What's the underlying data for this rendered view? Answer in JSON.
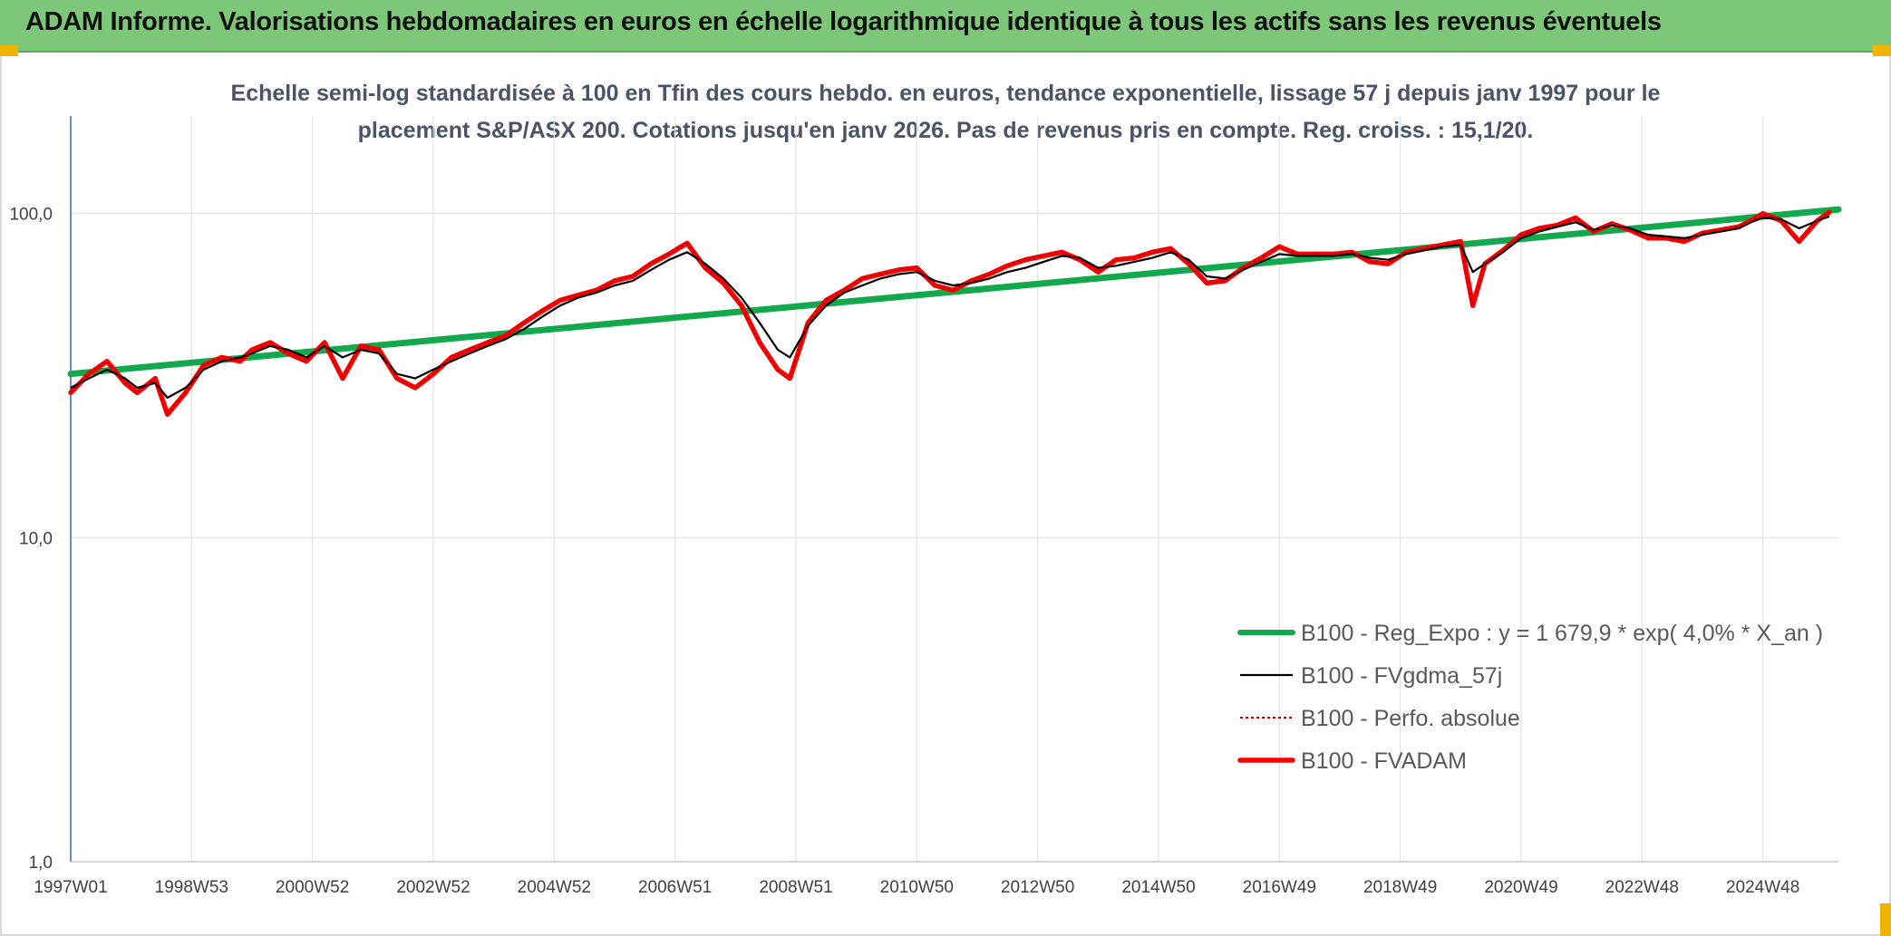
{
  "header": {
    "title": "ADAM Informe. Valorisations hebdomadaires en euros en échelle logarithmique identique à tous les actifs sans les revenus éventuels",
    "color": "#7dc878"
  },
  "chart_data": {
    "type": "line",
    "title": [
      "Echelle semi-log standardisée à 100 en Tfin des cours hebdo. en euros, tendance exponentielle, lissage 57 j depuis janv 1997 pour le",
      "placement S&P/ASX 200. Cotations jusqu'en janv 2026. Pas de revenus pris en compte. Reg. croiss. : 15,1/20."
    ],
    "y_scale": "log",
    "ylim": [
      1,
      200
    ],
    "y_ticks": [
      {
        "value": 100,
        "label": "100,0"
      },
      {
        "value": 10,
        "label": "10,0"
      },
      {
        "value": 1,
        "label": "1,0"
      }
    ],
    "xlim": [
      1997.0,
      2026.25
    ],
    "x_ticks": [
      {
        "value": 1997.0,
        "label": "1997W01"
      },
      {
        "value": 1999.0,
        "label": "1998W53"
      },
      {
        "value": 2001.0,
        "label": "2000W52"
      },
      {
        "value": 2003.0,
        "label": "2002W52"
      },
      {
        "value": 2005.0,
        "label": "2004W52"
      },
      {
        "value": 2007.0,
        "label": "2006W51"
      },
      {
        "value": 2009.0,
        "label": "2008W51"
      },
      {
        "value": 2011.0,
        "label": "2010W50"
      },
      {
        "value": 2013.0,
        "label": "2012W50"
      },
      {
        "value": 2015.0,
        "label": "2014W50"
      },
      {
        "value": 2017.0,
        "label": "2016W49"
      },
      {
        "value": 2019.0,
        "label": "2018W49"
      },
      {
        "value": 2021.0,
        "label": "2020W49"
      },
      {
        "value": 2023.0,
        "label": "2022W48"
      },
      {
        "value": 2025.0,
        "label": "2024W48"
      }
    ],
    "grid": {
      "vertical": true,
      "horizontal": true
    },
    "legend_position": "bottom-right",
    "series": [
      {
        "name": "B100 - Reg_Expo : y = 1 679,9 * exp( 4,0% *  X_an )",
        "color": "#12a84c",
        "style": "trend",
        "x": [
          1997.0,
          2026.25
        ],
        "y": [
          32.0,
          103.0
        ]
      },
      {
        "name": "B100 - FVgdma_57j",
        "color": "#000000",
        "style": "thin",
        "x": [
          1997.0,
          1997.3,
          1997.6,
          1997.9,
          1998.1,
          1998.4,
          1998.6,
          1998.9,
          1999.2,
          1999.5,
          1999.8,
          2000.0,
          2000.3,
          2000.6,
          2000.9,
          2001.2,
          2001.5,
          2001.8,
          2002.1,
          2002.4,
          2002.7,
          2003.0,
          2003.3,
          2003.6,
          2003.9,
          2004.2,
          2004.5,
          2004.8,
          2005.1,
          2005.4,
          2005.7,
          2006.0,
          2006.3,
          2006.6,
          2006.9,
          2007.2,
          2007.5,
          2007.8,
          2008.1,
          2008.4,
          2008.7,
          2008.9,
          2009.2,
          2009.5,
          2009.8,
          2010.1,
          2010.4,
          2010.7,
          2011.0,
          2011.3,
          2011.6,
          2011.9,
          2012.2,
          2012.5,
          2012.8,
          2013.1,
          2013.4,
          2013.7,
          2014.0,
          2014.3,
          2014.6,
          2014.9,
          2015.2,
          2015.5,
          2015.8,
          2016.1,
          2016.4,
          2016.7,
          2017.0,
          2017.3,
          2017.6,
          2017.9,
          2018.2,
          2018.5,
          2018.8,
          2019.1,
          2019.4,
          2019.7,
          2020.0,
          2020.2,
          2020.4,
          2020.7,
          2021.0,
          2021.3,
          2021.6,
          2021.9,
          2022.2,
          2022.5,
          2022.8,
          2023.1,
          2023.4,
          2023.7,
          2024.0,
          2024.3,
          2024.6,
          2024.8,
          2025.0,
          2025.3,
          2025.6,
          2025.9,
          2026.1
        ],
        "y": [
          29,
          31,
          33,
          31,
          29,
          30,
          27,
          29,
          33,
          35,
          36,
          37,
          39,
          38,
          36,
          39,
          36,
          38,
          37,
          32,
          31,
          33,
          35,
          37,
          39,
          41,
          44,
          48,
          52,
          55,
          57,
          60,
          62,
          67,
          72,
          76,
          70,
          63,
          55,
          46,
          38,
          36,
          45,
          52,
          57,
          60,
          63,
          65,
          66,
          62,
          60,
          61,
          63,
          66,
          68,
          71,
          74,
          73,
          68,
          69,
          71,
          73,
          76,
          72,
          64,
          63,
          67,
          71,
          75,
          74,
          74,
          74,
          75,
          73,
          72,
          75,
          77,
          79,
          80,
          66,
          70,
          76,
          84,
          88,
          91,
          94,
          89,
          92,
          90,
          86,
          85,
          84,
          86,
          88,
          90,
          94,
          97,
          96,
          90,
          95,
          98
        ]
      },
      {
        "name": "B100 - Perfo. absolue",
        "color": "#c00000",
        "style": "dotted",
        "x": [
          1997.0,
          1997.3,
          1997.6,
          1997.9,
          1998.1,
          1998.4,
          1998.6,
          1998.9,
          1999.2,
          1999.5,
          1999.8,
          2000.0,
          2000.3,
          2000.6,
          2000.9,
          2001.2,
          2001.5,
          2001.8,
          2002.1,
          2002.4,
          2002.7,
          2003.0,
          2003.3,
          2003.6,
          2003.9,
          2004.2,
          2004.5,
          2004.8,
          2005.1,
          2005.4,
          2005.7,
          2006.0,
          2006.3,
          2006.6,
          2006.9,
          2007.2,
          2007.5,
          2007.8,
          2008.1,
          2008.4,
          2008.7,
          2008.9,
          2009.2,
          2009.5,
          2009.8,
          2010.1,
          2010.4,
          2010.7,
          2011.0,
          2011.3,
          2011.6,
          2011.9,
          2012.2,
          2012.5,
          2012.8,
          2013.1,
          2013.4,
          2013.7,
          2014.0,
          2014.3,
          2014.6,
          2014.9,
          2015.2,
          2015.5,
          2015.8,
          2016.1,
          2016.4,
          2016.7,
          2017.0,
          2017.3,
          2017.6,
          2017.9,
          2018.2,
          2018.5,
          2018.8,
          2019.1,
          2019.4,
          2019.7,
          2020.0,
          2020.2,
          2020.4,
          2020.7,
          2021.0,
          2021.3,
          2021.6,
          2021.9,
          2022.2,
          2022.5,
          2022.8,
          2023.1,
          2023.4,
          2023.7,
          2024.0,
          2024.3,
          2024.6,
          2024.8,
          2025.0,
          2025.3,
          2025.6,
          2025.9,
          2026.1
        ],
        "y": [
          28,
          32,
          35,
          30,
          28,
          31,
          24,
          28,
          34,
          36,
          35,
          38,
          40,
          37,
          35,
          40,
          31,
          39,
          38,
          31,
          29,
          32,
          36,
          38,
          40,
          42,
          46,
          50,
          54,
          56,
          58,
          62,
          64,
          70,
          75,
          81,
          68,
          61,
          52,
          40,
          33,
          31,
          46,
          54,
          58,
          63,
          65,
          67,
          68,
          60,
          58,
          62,
          65,
          69,
          72,
          74,
          76,
          72,
          66,
          72,
          73,
          76,
          78,
          70,
          61,
          62,
          68,
          73,
          79,
          75,
          75,
          75,
          76,
          71,
          70,
          76,
          78,
          80,
          82,
          52,
          70,
          77,
          86,
          90,
          92,
          97,
          88,
          93,
          89,
          84,
          84,
          82,
          87,
          89,
          91,
          95,
          100,
          95,
          82,
          95,
          101
        ]
      },
      {
        "name": "B100 - FVADAM",
        "color": "#ff0000",
        "style": "thick",
        "x": [
          1997.0,
          1997.3,
          1997.6,
          1997.9,
          1998.1,
          1998.4,
          1998.6,
          1998.9,
          1999.2,
          1999.5,
          1999.8,
          2000.0,
          2000.3,
          2000.6,
          2000.9,
          2001.2,
          2001.5,
          2001.8,
          2002.1,
          2002.4,
          2002.7,
          2003.0,
          2003.3,
          2003.6,
          2003.9,
          2004.2,
          2004.5,
          2004.8,
          2005.1,
          2005.4,
          2005.7,
          2006.0,
          2006.3,
          2006.6,
          2006.9,
          2007.2,
          2007.5,
          2007.8,
          2008.1,
          2008.4,
          2008.7,
          2008.9,
          2009.2,
          2009.5,
          2009.8,
          2010.1,
          2010.4,
          2010.7,
          2011.0,
          2011.3,
          2011.6,
          2011.9,
          2012.2,
          2012.5,
          2012.8,
          2013.1,
          2013.4,
          2013.7,
          2014.0,
          2014.3,
          2014.6,
          2014.9,
          2015.2,
          2015.5,
          2015.8,
          2016.1,
          2016.4,
          2016.7,
          2017.0,
          2017.3,
          2017.6,
          2017.9,
          2018.2,
          2018.5,
          2018.8,
          2019.1,
          2019.4,
          2019.7,
          2020.0,
          2020.2,
          2020.4,
          2020.7,
          2021.0,
          2021.3,
          2021.6,
          2021.9,
          2022.2,
          2022.5,
          2022.8,
          2023.1,
          2023.4,
          2023.7,
          2024.0,
          2024.3,
          2024.6,
          2024.8,
          2025.0,
          2025.3,
          2025.6,
          2025.9,
          2026.1
        ],
        "y": [
          28,
          32,
          35,
          30,
          28,
          31,
          24,
          28,
          34,
          36,
          35,
          38,
          40,
          37,
          35,
          40,
          31,
          39,
          38,
          31,
          29,
          32,
          36,
          38,
          40,
          42,
          46,
          50,
          54,
          56,
          58,
          62,
          64,
          70,
          75,
          81,
          68,
          61,
          52,
          40,
          33,
          31,
          46,
          54,
          58,
          63,
          65,
          67,
          68,
          60,
          58,
          62,
          65,
          69,
          72,
          74,
          76,
          72,
          66,
          72,
          73,
          76,
          78,
          70,
          61,
          62,
          68,
          73,
          79,
          75,
          75,
          75,
          76,
          71,
          70,
          76,
          78,
          80,
          82,
          52,
          70,
          77,
          86,
          90,
          92,
          97,
          88,
          93,
          89,
          84,
          84,
          82,
          87,
          89,
          91,
          95,
          100,
          95,
          82,
          95,
          101
        ]
      }
    ]
  }
}
